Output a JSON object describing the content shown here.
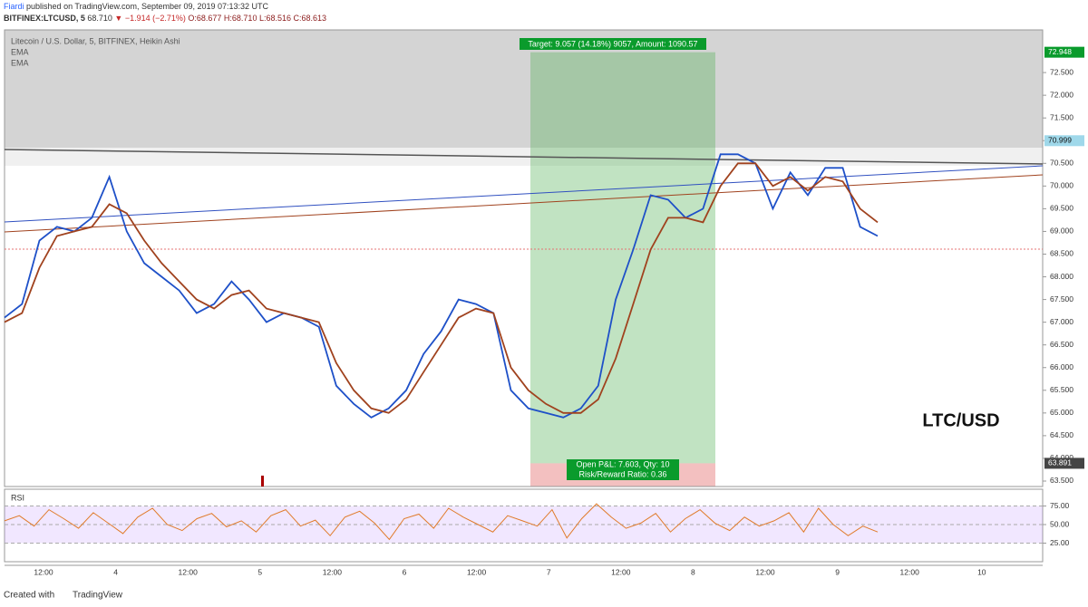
{
  "header": {
    "author": "Fiardi",
    "published": "published on TradingView.com, September 09, 2019 07:13:32 UTC",
    "symbol": "BITFINEX:LTCUSD, 5",
    "last": "68.710",
    "change": "▼ −1.914 (−2.71%)",
    "ohlc": "O:68.677 H:68.710 L:68.516 C:68.613"
  },
  "chart_data": [
    {
      "type": "line",
      "title": "LTC/USD",
      "series": [
        {
          "name": "Litecoin / U.S. Dollar, 5, BITFINEX, Heikin Ashi",
          "color": "#000000",
          "values": []
        },
        {
          "name": "EMA",
          "color": "#1e50c8",
          "values": [
            67.1,
            67.4,
            68.8,
            69.1,
            69.0,
            69.3,
            70.2,
            69.0,
            68.3,
            68.0,
            67.7,
            67.2,
            67.4,
            67.9,
            67.5,
            67.0,
            67.2,
            67.1,
            66.9,
            65.6,
            65.2,
            64.9,
            65.1,
            65.5,
            66.3,
            66.8,
            67.5,
            67.4,
            67.2,
            65.5,
            65.1,
            65.0,
            64.9,
            65.1,
            65.6,
            67.5,
            68.6,
            69.8,
            69.7,
            69.3,
            69.5,
            70.7,
            70.7,
            70.5,
            69.5,
            70.3,
            69.8,
            70.4,
            70.4,
            69.1,
            68.9
          ]
        },
        {
          "name": "EMA",
          "color": "#a0421e",
          "values": [
            67.0,
            67.2,
            68.2,
            68.9,
            69.0,
            69.1,
            69.6,
            69.4,
            68.8,
            68.3,
            67.9,
            67.5,
            67.3,
            67.6,
            67.7,
            67.3,
            67.2,
            67.1,
            67.0,
            66.1,
            65.5,
            65.1,
            65.0,
            65.3,
            65.9,
            66.5,
            67.1,
            67.3,
            67.2,
            66.0,
            65.5,
            65.2,
            65.0,
            65.0,
            65.3,
            66.2,
            67.4,
            68.6,
            69.3,
            69.3,
            69.2,
            70.0,
            70.5,
            70.5,
            70.0,
            70.2,
            69.9,
            70.2,
            70.1,
            69.5,
            69.2
          ]
        }
      ],
      "ylim": [
        63.38,
        73.44
      ],
      "yticks": [
        {
          "value": 63.5,
          "label": "63.500"
        },
        {
          "value": 64,
          "label": "64.000"
        },
        {
          "value": 64.5,
          "label": "64.500"
        },
        {
          "value": 65,
          "label": "65.000"
        },
        {
          "value": 65.5,
          "label": "65.500"
        },
        {
          "value": 66,
          "label": "66.000"
        },
        {
          "value": 66.5,
          "label": "66.500"
        },
        {
          "value": 67,
          "label": "67.000"
        },
        {
          "value": 67.5,
          "label": "67.500"
        },
        {
          "value": 68,
          "label": "68.000"
        },
        {
          "value": 68.5,
          "label": "68.500"
        },
        {
          "value": 69,
          "label": "69.000"
        },
        {
          "value": 69.5,
          "label": "69.500"
        },
        {
          "value": 70,
          "label": "70.000"
        },
        {
          "value": 70.5,
          "label": "70.500"
        },
        {
          "value": 71,
          "label": "71.000"
        },
        {
          "value": 71.5,
          "label": "71.500"
        },
        {
          "value": 72,
          "label": "72.000"
        },
        {
          "value": 72.5,
          "label": "72.500"
        }
      ],
      "price_tags": [
        72.948,
        70.999,
        63.891
      ],
      "target_label": "Target: 9.057 (14.18%) 9057, Amount: 1090.57",
      "pnl_label": "Open P&L: 7.603, Qty: 10",
      "rr_label": "Risk/Reward Ratio: 0.36",
      "x_labels": [
        "12:00",
        "4",
        "12:00",
        "5",
        "12:00",
        "6",
        "12:00",
        "7",
        "12:00",
        "8",
        "12:00",
        "9",
        "12:00",
        "10"
      ]
    },
    {
      "type": "line",
      "title": "RSI",
      "series": [
        {
          "name": "RSI",
          "color": "#e07b2a",
          "values": [
            55,
            62,
            48,
            70,
            58,
            45,
            66,
            52,
            38,
            60,
            72,
            50,
            42,
            58,
            65,
            47,
            55,
            40,
            62,
            70,
            48,
            56,
            35,
            60,
            68,
            52,
            30,
            58,
            64,
            45,
            72,
            60,
            50,
            40,
            62,
            55,
            48,
            70,
            32,
            58,
            78,
            60,
            45,
            52,
            65,
            40,
            58,
            70,
            52,
            42,
            60,
            48,
            55,
            66,
            40,
            72,
            50,
            35,
            48,
            40
          ]
        }
      ],
      "ylim": [
        0,
        97.6
      ],
      "yticks": [
        {
          "value": 25,
          "label": "25.00"
        },
        {
          "value": 50,
          "label": "50.00"
        },
        {
          "value": 75,
          "label": "75.00"
        }
      ]
    }
  ],
  "footer": {
    "created": "Created with",
    "brand": "TradingView"
  }
}
